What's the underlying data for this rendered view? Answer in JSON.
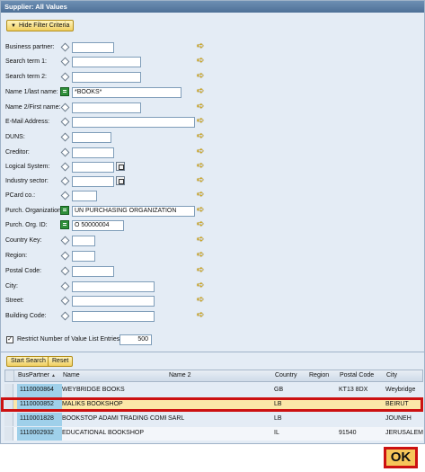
{
  "window": {
    "title": "Supplier: All Values"
  },
  "toggle_button": {
    "label": "Hide Filter Criteria"
  },
  "criteria": [
    {
      "label": "Business partner:",
      "value": "",
      "op": "diamond"
    },
    {
      "label": "Search term 1:",
      "value": "",
      "op": "diamond"
    },
    {
      "label": "Search term 2:",
      "value": "",
      "op": "diamond"
    },
    {
      "label": "Name 1/last name:",
      "value": "*BOOKS*",
      "op": "equals"
    },
    {
      "label": "Name 2/First name:",
      "value": "",
      "op": "diamond"
    },
    {
      "label": "E-Mail Address:",
      "value": "",
      "op": "diamond"
    },
    {
      "label": "DUNS:",
      "value": "",
      "op": "diamond"
    },
    {
      "label": "Creditor:",
      "value": "",
      "op": "diamond"
    },
    {
      "label": "Logical System:",
      "value": "",
      "op": "diamond"
    },
    {
      "label": "Industry sector:",
      "value": "",
      "op": "diamond"
    },
    {
      "label": "PCard co.:",
      "value": "",
      "op": "diamond"
    },
    {
      "label": "Purch. Organization:",
      "value": "UN PURCHASING ORGANIZATION",
      "op": "equals"
    },
    {
      "label": "Purch. Org. ID:",
      "value": "O 50000004",
      "op": "equals"
    },
    {
      "label": "Country Key:",
      "value": "",
      "op": "diamond"
    },
    {
      "label": "Region:",
      "value": "",
      "op": "diamond"
    },
    {
      "label": "Postal Code:",
      "value": "",
      "op": "diamond"
    },
    {
      "label": "City:",
      "value": "",
      "op": "diamond"
    },
    {
      "label": "Street:",
      "value": "",
      "op": "diamond"
    },
    {
      "label": "Building Code:",
      "value": "",
      "op": "diamond"
    }
  ],
  "restrict": {
    "checked": true,
    "label": "Restrict Number of Value List Entries To",
    "value": "500"
  },
  "actions": {
    "start_search": "Start Search",
    "reset": "Reset"
  },
  "table": {
    "headers": [
      "BusPartner",
      "Name",
      "Name 2",
      "Country",
      "Region",
      "Postal Code",
      "City"
    ],
    "rows": [
      {
        "bp": "1110000864",
        "name": "WEYBRIDGE BOOKS",
        "name2": "",
        "country": "GB",
        "region": "",
        "postal": "KT13 8DX",
        "city": "Weybridge"
      },
      {
        "bp": "1110000852",
        "name": "MALIKS BOOKSHOP",
        "name2": "",
        "country": "LB",
        "region": "",
        "postal": "",
        "city": "BEIRUT"
      },
      {
        "bp": "1110001828",
        "name": "BOOKSTOP ADAMI TRADING COMP...",
        "name2": "SARL",
        "country": "LB",
        "region": "",
        "postal": "",
        "city": "JOUNEH"
      },
      {
        "bp": "1110002932",
        "name": "EDUCATIONAL BOOKSHOP",
        "name2": "",
        "country": "IL",
        "region": "",
        "postal": "91540",
        "city": "JERUSALEM"
      }
    ],
    "selected_row": 1
  },
  "ok_button": {
    "label": "OK"
  },
  "colors": {
    "title_bar": "#5a7ca3",
    "panel": "#e4ecf5",
    "highlight": "#cc1111",
    "selected_row": "#fbe7a8",
    "ok_fill": "#f6c65a"
  },
  "icons": {
    "toggle": "triangle-down-icon",
    "multi_select": "yellow-arrow-icon",
    "operator": "diamond-icon",
    "value_help": "f4-help-icon"
  }
}
